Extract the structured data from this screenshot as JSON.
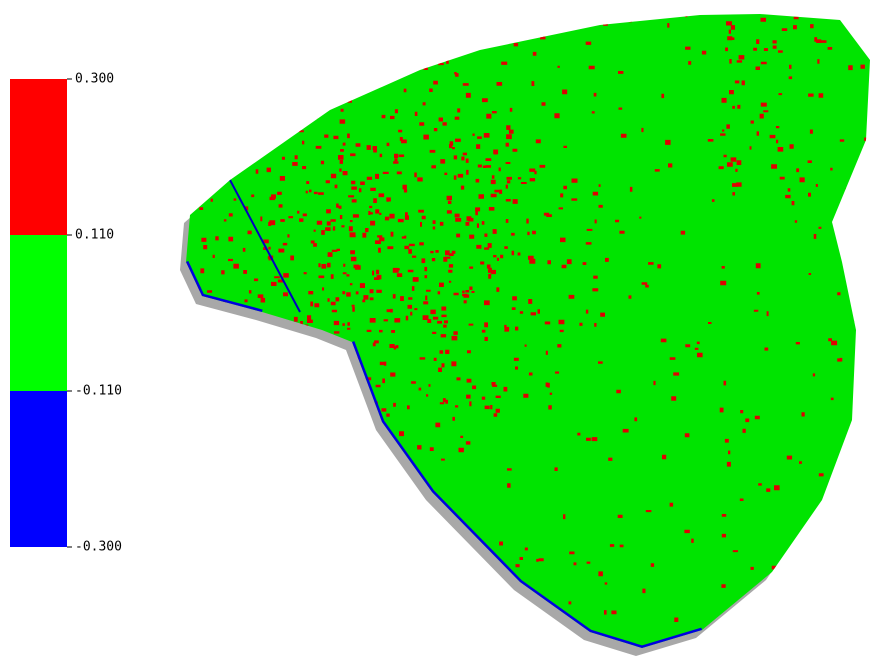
{
  "legend": {
    "ticks": [
      {
        "value": 0.3,
        "label": "0.300"
      },
      {
        "value": 0.11,
        "label": "0.110"
      },
      {
        "value": -0.11,
        "label": "-0.110"
      },
      {
        "value": -0.3,
        "label": "-0.300"
      }
    ],
    "colors": [
      "#ff0000",
      "#00ff00",
      "#0000ff"
    ]
  }
}
